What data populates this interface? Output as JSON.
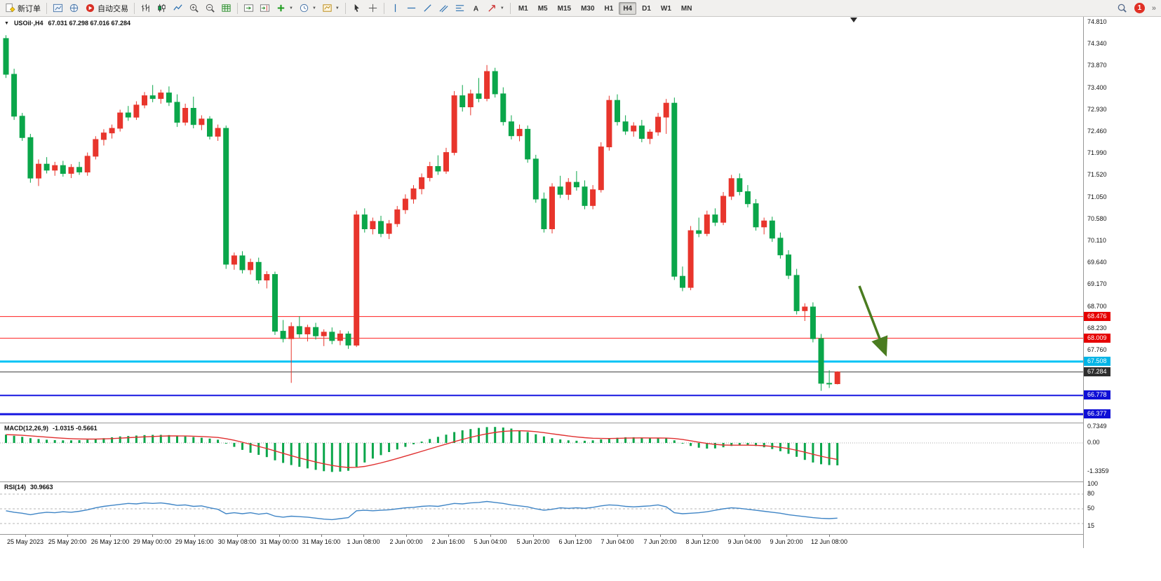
{
  "toolbar": {
    "new_order_label": "新订单",
    "auto_trading_label": "自动交易",
    "timeframes": [
      "M1",
      "M5",
      "M15",
      "M30",
      "H1",
      "H4",
      "D1",
      "W1",
      "MN"
    ],
    "active_timeframe": "H4",
    "notification_badge": "1",
    "overflow_chevron": "»"
  },
  "chart_data": {
    "type": "candlestick",
    "symbol_label": "USOil·,H4",
    "ohlc_label": "67.031 67.298 67.016 67.284",
    "bull_color": "#e8352c",
    "bear_color": "#0aa64a",
    "price_axis_ticks": [
      "74.810",
      "74.340",
      "73.870",
      "73.400",
      "72.930",
      "72.460",
      "71.990",
      "71.520",
      "71.050",
      "70.580",
      "70.110",
      "69.640",
      "69.170",
      "68.700",
      "68.230",
      "67.760"
    ],
    "hlines": [
      {
        "price": "68.476",
        "color": "#ff1e1e",
        "width": 1,
        "tag_bg": "#e60000",
        "tag_fg": "#ffffff"
      },
      {
        "price": "68.009",
        "color": "#ff1e1e",
        "width": 1,
        "tag_bg": "#e60000",
        "tag_fg": "#ffffff"
      },
      {
        "price": "67.508",
        "color": "#00c3f5",
        "width": 3,
        "tag_bg": "#00b4e6",
        "tag_fg": "#ffffff"
      },
      {
        "price": "67.284",
        "color": "#3c3c3c",
        "width": 1,
        "tag_bg": "#2e2e2e",
        "tag_fg": "#ffffff"
      },
      {
        "price": "66.778",
        "color": "#1616e0",
        "width": 2,
        "tag_bg": "#0f0fd6",
        "tag_fg": "#ffffff"
      },
      {
        "price": "66.377",
        "color": "#1616e0",
        "width": 3,
        "tag_bg": "#0f0fd6",
        "tag_fg": "#ffffff"
      }
    ],
    "arrow": {
      "color": "#4a7c20"
    },
    "time_labels": [
      "25 May 2023",
      "25 May 20:00",
      "26 May 12:00",
      "29 May 00:00",
      "29 May 16:00",
      "30 May 08:00",
      "31 May 00:00",
      "31 May 16:00",
      "1 Jun 08:00",
      "2 Jun 00:00",
      "2 Jun 16:00",
      "5 Jun 04:00",
      "5 Jun 20:00",
      "6 Jun 12:00",
      "7 Jun 04:00",
      "7 Jun 20:00",
      "8 Jun 12:00",
      "9 Jun 04:00",
      "9 Jun 20:00",
      "12 Jun 08:00"
    ],
    "candles": [
      [
        74.45,
        74.52,
        73.6,
        73.68
      ],
      [
        73.68,
        73.8,
        72.7,
        72.78
      ],
      [
        72.78,
        72.85,
        72.25,
        72.32
      ],
      [
        72.32,
        72.4,
        71.35,
        71.45
      ],
      [
        71.45,
        71.85,
        71.28,
        71.75
      ],
      [
        71.75,
        71.9,
        71.55,
        71.62
      ],
      [
        71.62,
        71.8,
        71.5,
        71.72
      ],
      [
        71.72,
        71.82,
        71.48,
        71.55
      ],
      [
        71.55,
        71.75,
        71.45,
        71.68
      ],
      [
        71.68,
        71.8,
        71.52,
        71.58
      ],
      [
        71.58,
        72.0,
        71.5,
        71.92
      ],
      [
        71.92,
        72.35,
        71.85,
        72.28
      ],
      [
        72.28,
        72.5,
        72.15,
        72.42
      ],
      [
        72.42,
        72.6,
        72.3,
        72.52
      ],
      [
        72.52,
        72.92,
        72.45,
        72.85
      ],
      [
        72.85,
        73.0,
        72.68,
        72.76
      ],
      [
        72.76,
        73.1,
        72.7,
        73.02
      ],
      [
        73.02,
        73.3,
        72.95,
        73.22
      ],
      [
        73.22,
        73.45,
        73.08,
        73.16
      ],
      [
        73.16,
        73.35,
        73.05,
        73.28
      ],
      [
        73.28,
        73.42,
        73.0,
        73.08
      ],
      [
        73.08,
        73.25,
        72.55,
        72.65
      ],
      [
        72.65,
        73.05,
        72.58,
        72.95
      ],
      [
        72.95,
        73.2,
        72.52,
        72.6
      ],
      [
        72.6,
        72.8,
        72.48,
        72.72
      ],
      [
        72.72,
        72.78,
        72.28,
        72.35
      ],
      [
        72.35,
        72.6,
        72.25,
        72.52
      ],
      [
        72.52,
        72.58,
        69.5,
        69.6
      ],
      [
        69.6,
        69.85,
        69.48,
        69.78
      ],
      [
        69.78,
        69.88,
        69.4,
        69.48
      ],
      [
        69.48,
        69.72,
        69.38,
        69.64
      ],
      [
        69.64,
        69.74,
        69.18,
        69.26
      ],
      [
        69.26,
        69.45,
        69.08,
        69.38
      ],
      [
        69.38,
        69.44,
        68.08,
        68.16
      ],
      [
        68.16,
        68.4,
        67.92,
        68.0
      ],
      [
        68.0,
        68.35,
        67.05,
        68.26
      ],
      [
        68.26,
        68.48,
        68.02,
        68.1
      ],
      [
        68.1,
        68.3,
        67.94,
        68.24
      ],
      [
        68.24,
        68.34,
        67.98,
        68.06
      ],
      [
        68.06,
        68.2,
        67.84,
        68.14
      ],
      [
        68.14,
        68.24,
        67.88,
        67.96
      ],
      [
        67.96,
        68.18,
        67.86,
        68.1
      ],
      [
        68.1,
        68.16,
        67.78,
        67.86
      ],
      [
        67.86,
        70.75,
        67.82,
        70.66
      ],
      [
        70.66,
        70.8,
        70.28,
        70.36
      ],
      [
        70.36,
        70.6,
        70.24,
        70.52
      ],
      [
        70.52,
        70.64,
        70.18,
        70.26
      ],
      [
        70.26,
        70.55,
        70.14,
        70.47
      ],
      [
        70.47,
        70.85,
        70.4,
        70.77
      ],
      [
        70.77,
        71.1,
        70.68,
        71.0
      ],
      [
        71.0,
        71.3,
        70.9,
        71.22
      ],
      [
        71.22,
        71.55,
        71.1,
        71.46
      ],
      [
        71.46,
        71.8,
        71.38,
        71.7
      ],
      [
        71.7,
        71.94,
        71.52,
        71.6
      ],
      [
        71.6,
        72.1,
        71.54,
        72.0
      ],
      [
        72.0,
        73.32,
        71.94,
        73.22
      ],
      [
        73.22,
        73.45,
        72.88,
        72.98
      ],
      [
        72.98,
        73.35,
        72.8,
        73.26
      ],
      [
        73.26,
        73.6,
        73.08,
        73.16
      ],
      [
        73.16,
        73.88,
        73.1,
        73.74
      ],
      [
        73.74,
        73.82,
        73.18,
        73.26
      ],
      [
        73.26,
        73.4,
        72.58,
        72.66
      ],
      [
        72.66,
        72.8,
        72.28,
        72.36
      ],
      [
        72.36,
        72.6,
        72.24,
        72.5
      ],
      [
        72.5,
        72.58,
        71.78,
        71.86
      ],
      [
        71.86,
        71.95,
        70.92,
        71.0
      ],
      [
        71.0,
        71.14,
        70.28,
        70.36
      ],
      [
        70.36,
        71.34,
        70.26,
        71.26
      ],
      [
        71.26,
        71.5,
        71.02,
        71.1
      ],
      [
        71.1,
        71.45,
        70.98,
        71.36
      ],
      [
        71.36,
        71.6,
        71.18,
        71.26
      ],
      [
        71.26,
        71.4,
        70.78,
        70.86
      ],
      [
        70.86,
        71.3,
        70.78,
        71.2
      ],
      [
        71.2,
        72.22,
        71.14,
        72.12
      ],
      [
        72.12,
        73.22,
        72.04,
        73.12
      ],
      [
        73.12,
        73.25,
        72.58,
        72.66
      ],
      [
        72.66,
        72.8,
        72.38,
        72.46
      ],
      [
        72.46,
        72.65,
        72.34,
        72.57
      ],
      [
        72.57,
        72.7,
        72.22,
        72.3
      ],
      [
        72.3,
        72.5,
        72.18,
        72.44
      ],
      [
        72.44,
        72.85,
        72.36,
        72.76
      ],
      [
        72.76,
        73.15,
        72.4,
        73.06
      ],
      [
        73.06,
        73.18,
        69.26,
        69.34
      ],
      [
        69.34,
        69.55,
        69.02,
        69.1
      ],
      [
        69.1,
        70.42,
        69.04,
        70.32
      ],
      [
        70.32,
        70.6,
        70.18,
        70.26
      ],
      [
        70.26,
        70.75,
        70.2,
        70.66
      ],
      [
        70.66,
        70.8,
        70.42,
        70.5
      ],
      [
        70.5,
        71.15,
        70.44,
        71.06
      ],
      [
        71.06,
        71.52,
        70.98,
        71.44
      ],
      [
        71.44,
        71.55,
        71.08,
        71.16
      ],
      [
        71.16,
        71.3,
        70.82,
        70.9
      ],
      [
        70.9,
        71.0,
        70.32,
        70.4
      ],
      [
        70.4,
        70.6,
        70.24,
        70.53
      ],
      [
        70.53,
        70.62,
        70.08,
        70.16
      ],
      [
        70.16,
        70.28,
        69.72,
        69.8
      ],
      [
        69.8,
        69.9,
        69.28,
        69.36
      ],
      [
        69.36,
        69.5,
        68.52,
        68.6
      ],
      [
        68.6,
        68.76,
        68.38,
        68.68
      ],
      [
        68.68,
        68.78,
        67.92,
        68.0
      ],
      [
        68.0,
        68.1,
        66.88,
        67.04
      ],
      [
        67.04,
        67.32,
        66.94,
        67.03
      ],
      [
        67.031,
        67.298,
        67.016,
        67.284
      ]
    ],
    "macd": {
      "name_label": "MACD(12,26,9)",
      "values_label": "-1.0315 -0.5661",
      "axis_ticks": [
        "0.7349",
        "0.00",
        "-1.3359"
      ],
      "histogram_color": "#0aa64a",
      "signal_color": "#e03030",
      "histogram": [
        0.38,
        0.33,
        0.28,
        0.22,
        0.18,
        0.15,
        0.13,
        0.12,
        0.12,
        0.13,
        0.15,
        0.18,
        0.22,
        0.26,
        0.3,
        0.32,
        0.34,
        0.36,
        0.37,
        0.37,
        0.36,
        0.33,
        0.3,
        0.27,
        0.24,
        0.2,
        0.15,
        -0.02,
        -0.18,
        -0.32,
        -0.45,
        -0.55,
        -0.65,
        -0.8,
        -0.92,
        -1.02,
        -1.1,
        -1.17,
        -1.24,
        -1.3,
        -1.3359,
        -1.32,
        -1.28,
        -1.1,
        -0.9,
        -0.72,
        -0.56,
        -0.42,
        -0.3,
        -0.18,
        -0.06,
        0.06,
        0.18,
        0.28,
        0.38,
        0.5,
        0.58,
        0.64,
        0.69,
        0.73,
        0.7349,
        0.71,
        0.66,
        0.58,
        0.5,
        0.4,
        0.3,
        0.22,
        0.16,
        0.12,
        0.1,
        0.1,
        0.12,
        0.16,
        0.2,
        0.24,
        0.26,
        0.26,
        0.24,
        0.22,
        0.21,
        0.22,
        0.12,
        -0.02,
        -0.14,
        -0.22,
        -0.26,
        -0.25,
        -0.2,
        -0.14,
        -0.1,
        -0.1,
        -0.14,
        -0.2,
        -0.28,
        -0.38,
        -0.5,
        -0.64,
        -0.78,
        -0.9,
        -0.98,
        -1.02,
        -1.0315
      ]
    },
    "rsi": {
      "name_label": "RSI(14)",
      "value_label": "30.9663",
      "axis_ticks": [
        "100",
        "80",
        "50",
        "15"
      ],
      "levels": [
        80,
        50,
        20
      ],
      "line_color": "#3f85c6",
      "values": [
        46,
        43,
        41,
        38,
        41,
        43,
        42,
        44,
        43,
        45,
        48,
        52,
        55,
        57,
        59,
        61,
        60,
        62,
        61,
        62,
        60,
        57,
        58,
        55,
        56,
        52,
        49,
        40,
        42,
        40,
        42,
        39,
        41,
        35,
        33,
        35,
        34,
        33,
        31,
        29,
        28,
        30,
        32,
        46,
        47,
        46,
        47,
        48,
        50,
        52,
        53,
        55,
        56,
        55,
        58,
        61,
        60,
        62,
        63,
        65,
        63,
        61,
        58,
        56,
        54,
        50,
        47,
        49,
        52,
        51,
        52,
        51,
        53,
        56,
        58,
        57,
        55,
        54,
        55,
        56,
        58,
        54,
        42,
        40,
        41,
        42,
        44,
        47,
        50,
        52,
        51,
        49,
        47,
        45,
        43,
        41,
        38,
        36,
        34,
        32,
        30.5,
        30,
        30.97
      ]
    }
  }
}
